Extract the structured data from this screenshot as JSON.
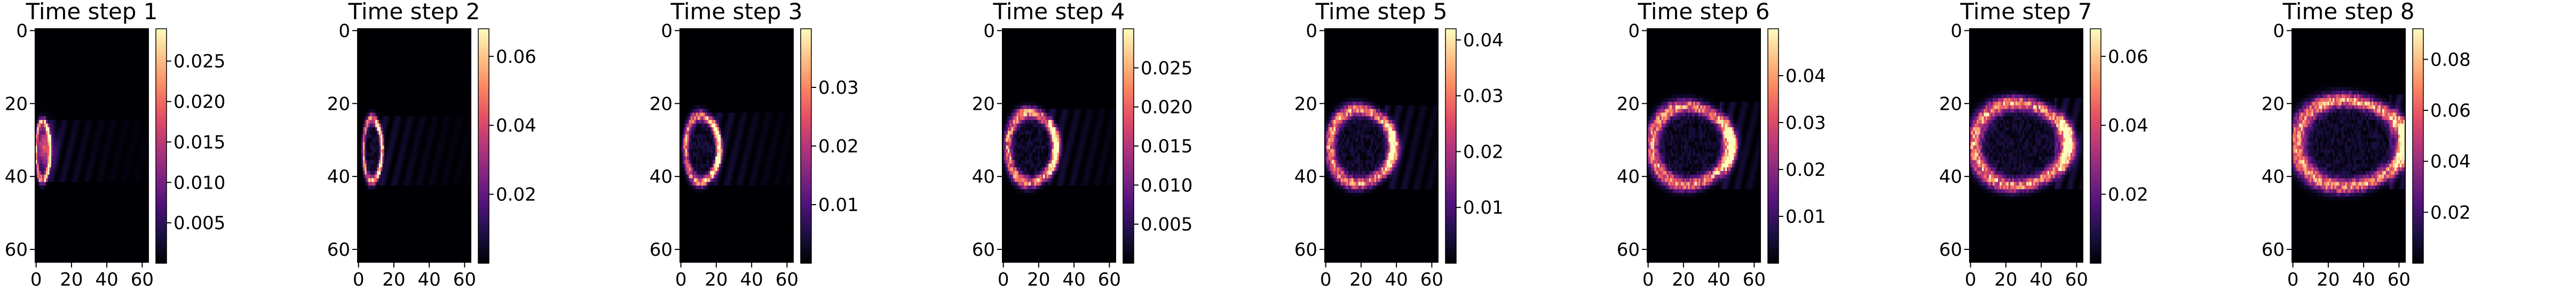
{
  "figure": {
    "background": "#ffffff"
  },
  "colormap": {
    "name": "magma",
    "stops": [
      "#000004",
      "#1c1044",
      "#4f127b",
      "#812581",
      "#b5367a",
      "#e55064",
      "#fb8761",
      "#fec287",
      "#fcfdbf"
    ]
  },
  "chart_data": [
    {
      "type": "heatmap",
      "title": "Time step 1",
      "grid_size": 64,
      "xticks": [
        0,
        20,
        40,
        60
      ],
      "yticks": [
        0,
        20,
        40,
        60
      ],
      "colorbar": {
        "min": 0,
        "max": 0.029,
        "ticks": [
          0.005,
          0.01,
          0.015,
          0.02,
          0.025
        ],
        "tick_labels": [
          "0.005",
          "0.010",
          "0.015",
          "0.020",
          "0.025"
        ]
      }
    },
    {
      "type": "heatmap",
      "title": "Time step 2",
      "grid_size": 64,
      "xticks": [
        0,
        20,
        40,
        60
      ],
      "yticks": [
        0,
        20,
        40,
        60
      ],
      "colorbar": {
        "min": 0,
        "max": 0.068,
        "ticks": [
          0.02,
          0.04,
          0.06
        ],
        "tick_labels": [
          "0.02",
          "0.04",
          "0.06"
        ]
      }
    },
    {
      "type": "heatmap",
      "title": "Time step 3",
      "grid_size": 64,
      "xticks": [
        0,
        20,
        40,
        60
      ],
      "yticks": [
        0,
        20,
        40,
        60
      ],
      "colorbar": {
        "min": 0,
        "max": 0.04,
        "ticks": [
          0.01,
          0.02,
          0.03
        ],
        "tick_labels": [
          "0.01",
          "0.02",
          "0.03"
        ]
      }
    },
    {
      "type": "heatmap",
      "title": "Time step 4",
      "grid_size": 64,
      "xticks": [
        0,
        20,
        40,
        60
      ],
      "yticks": [
        0,
        20,
        40,
        60
      ],
      "colorbar": {
        "min": 0,
        "max": 0.03,
        "ticks": [
          0.005,
          0.01,
          0.015,
          0.02,
          0.025
        ],
        "tick_labels": [
          "0.005",
          "0.010",
          "0.015",
          "0.020",
          "0.025"
        ]
      }
    },
    {
      "type": "heatmap",
      "title": "Time step 5",
      "grid_size": 64,
      "xticks": [
        0,
        20,
        40,
        60
      ],
      "yticks": [
        0,
        20,
        40,
        60
      ],
      "colorbar": {
        "min": 0,
        "max": 0.042,
        "ticks": [
          0.01,
          0.02,
          0.03,
          0.04
        ],
        "tick_labels": [
          "0.01",
          "0.02",
          "0.03",
          "0.04"
        ]
      }
    },
    {
      "type": "heatmap",
      "title": "Time step 6",
      "grid_size": 64,
      "xticks": [
        0,
        20,
        40,
        60
      ],
      "yticks": [
        0,
        20,
        40,
        60
      ],
      "colorbar": {
        "min": 0,
        "max": 0.05,
        "ticks": [
          0.01,
          0.02,
          0.03,
          0.04
        ],
        "tick_labels": [
          "0.01",
          "0.02",
          "0.03",
          "0.04"
        ]
      }
    },
    {
      "type": "heatmap",
      "title": "Time step 7",
      "grid_size": 64,
      "xticks": [
        0,
        20,
        40,
        60
      ],
      "yticks": [
        0,
        20,
        40,
        60
      ],
      "colorbar": {
        "min": 0,
        "max": 0.068,
        "ticks": [
          0.02,
          0.04,
          0.06
        ],
        "tick_labels": [
          "0.02",
          "0.04",
          "0.06"
        ]
      }
    },
    {
      "type": "heatmap",
      "title": "Time step 8",
      "grid_size": 64,
      "xticks": [
        0,
        20,
        40,
        60
      ],
      "yticks": [
        0,
        20,
        40,
        60
      ],
      "colorbar": {
        "min": 0,
        "max": 0.092,
        "ticks": [
          0.02,
          0.04,
          0.06,
          0.08
        ],
        "tick_labels": [
          "0.02",
          "0.04",
          "0.06",
          "0.08"
        ]
      }
    }
  ]
}
